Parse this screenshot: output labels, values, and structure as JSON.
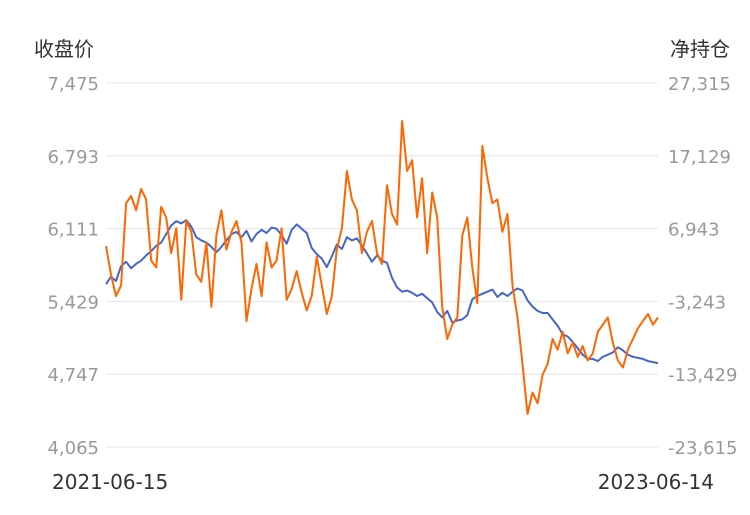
{
  "chart_data": {
    "type": "line",
    "title": "",
    "y_left_label": "收盘价",
    "y_right_label": "净持仓",
    "x_start_label": "2021-06-15",
    "x_end_label": "2023-06-14",
    "y_left_ticks": [
      "7,475",
      "6,793",
      "6,111",
      "5,429",
      "4,747",
      "4,065"
    ],
    "y_right_ticks": [
      "27,315",
      "17,129",
      "6,943",
      "-3,243",
      "-13,429",
      "-23,615"
    ],
    "ylim_left": [
      4065,
      7475
    ],
    "ylim_right": [
      -23615,
      27315
    ],
    "grid": true,
    "legend": "none",
    "colors": {
      "close": "#4466cc",
      "net_position": "#ff6600",
      "axis_text": "#999999",
      "label_text": "#333333",
      "grid": "#e6e6e6"
    },
    "series": [
      {
        "key": "close",
        "axis": "left",
        "x": [
          0,
          5,
          10,
          15,
          20,
          25,
          30,
          35,
          40,
          45,
          50,
          55,
          60,
          65,
          70,
          75,
          80,
          85,
          90,
          95,
          100,
          105,
          110,
          115,
          120,
          125,
          130,
          135,
          140,
          145,
          150,
          155,
          160,
          165,
          170,
          175,
          180,
          185,
          190,
          195,
          200,
          205,
          210,
          215,
          220,
          225,
          230,
          235,
          240,
          245,
          250,
          255,
          260,
          265,
          270,
          275,
          280,
          285,
          290,
          295,
          300,
          305,
          310,
          315,
          320,
          325,
          330,
          335,
          340,
          345,
          350,
          355,
          360,
          365,
          370,
          375,
          380,
          385,
          390,
          395,
          400,
          405,
          410,
          415,
          420,
          425,
          430,
          435,
          440,
          445,
          450,
          455,
          460,
          465,
          470,
          475,
          480,
          485,
          490,
          495,
          500,
          505,
          510,
          515,
          520,
          525,
          530,
          535,
          540,
          545,
          550
        ],
        "values": [
          5590,
          5660,
          5620,
          5760,
          5800,
          5740,
          5780,
          5810,
          5860,
          5900,
          5950,
          5980,
          6060,
          6140,
          6180,
          6160,
          6190,
          6130,
          6030,
          6000,
          5980,
          5940,
          5890,
          5940,
          6000,
          6060,
          6080,
          6030,
          6090,
          5990,
          6060,
          6100,
          6070,
          6120,
          6110,
          6050,
          5970,
          6100,
          6150,
          6110,
          6070,
          5930,
          5870,
          5830,
          5750,
          5850,
          5960,
          5920,
          6030,
          6000,
          6020,
          5950,
          5880,
          5800,
          5860,
          5810,
          5790,
          5650,
          5560,
          5520,
          5530,
          5510,
          5480,
          5500,
          5460,
          5420,
          5330,
          5280,
          5340,
          5230,
          5250,
          5260,
          5300,
          5450,
          5480,
          5500,
          5520,
          5540,
          5470,
          5510,
          5480,
          5520,
          5550,
          5530,
          5440,
          5380,
          5340,
          5320,
          5320,
          5260,
          5200,
          5120,
          5100,
          5050,
          4990,
          4930,
          4890,
          4890,
          4870,
          4910,
          4930,
          4950,
          5000,
          4970,
          4930,
          4910,
          4900,
          4890,
          4870,
          4860,
          4850
        ]
      },
      {
        "key": "net_position",
        "axis": "right",
        "x": [
          0,
          5,
          10,
          15,
          20,
          25,
          30,
          35,
          40,
          45,
          50,
          55,
          60,
          65,
          70,
          75,
          80,
          85,
          90,
          95,
          100,
          105,
          110,
          115,
          120,
          125,
          130,
          135,
          140,
          145,
          150,
          155,
          160,
          165,
          170,
          175,
          180,
          185,
          190,
          195,
          200,
          205,
          210,
          215,
          220,
          225,
          230,
          235,
          240,
          245,
          250,
          255,
          260,
          265,
          270,
          275,
          280,
          285,
          290,
          295,
          300,
          305,
          310,
          315,
          320,
          325,
          330,
          335,
          340,
          345,
          350,
          355,
          360,
          365,
          370,
          375,
          380,
          385,
          390,
          395,
          400,
          405,
          410,
          415,
          420,
          425,
          430,
          435,
          440,
          445,
          450,
          455,
          460,
          465,
          470,
          475,
          480,
          485,
          490,
          495,
          500,
          505,
          510,
          515,
          520,
          525,
          530,
          535,
          540,
          545,
          550
        ],
        "values": [
          4500,
          500,
          -2500,
          -1000,
          10500,
          11500,
          9500,
          12500,
          11000,
          2500,
          1500,
          10000,
          8500,
          3500,
          7000,
          -3000,
          8000,
          6500,
          500,
          -500,
          5000,
          -4000,
          6000,
          9500,
          4000,
          6500,
          8000,
          5000,
          -6000,
          -1500,
          2000,
          -2500,
          5000,
          1500,
          2500,
          7000,
          -3000,
          -1500,
          1000,
          -2000,
          -4500,
          -2500,
          3000,
          -1000,
          -5000,
          -2500,
          4000,
          7000,
          15000,
          11000,
          9500,
          3500,
          6500,
          8000,
          3500,
          2000,
          13000,
          9000,
          7500,
          22000,
          15000,
          16500,
          8500,
          14000,
          3500,
          12000,
          8500,
          -4000,
          -8500,
          -6500,
          -5500,
          6000,
          8500,
          1500,
          -3500,
          18500,
          14000,
          10500,
          11000,
          6500,
          9000,
          -1000,
          -5500,
          -12000,
          -19000,
          -16000,
          -17500,
          -13500,
          -12000,
          -8500,
          -10000,
          -7500,
          -10500,
          -9000,
          -11000,
          -9500,
          -11500,
          -10500,
          -7500,
          -6500,
          -5500,
          -9000,
          -11500,
          -12500,
          -10000,
          -8500,
          -7000,
          -6000,
          -5000,
          -6500,
          -5500
        ]
      }
    ]
  }
}
